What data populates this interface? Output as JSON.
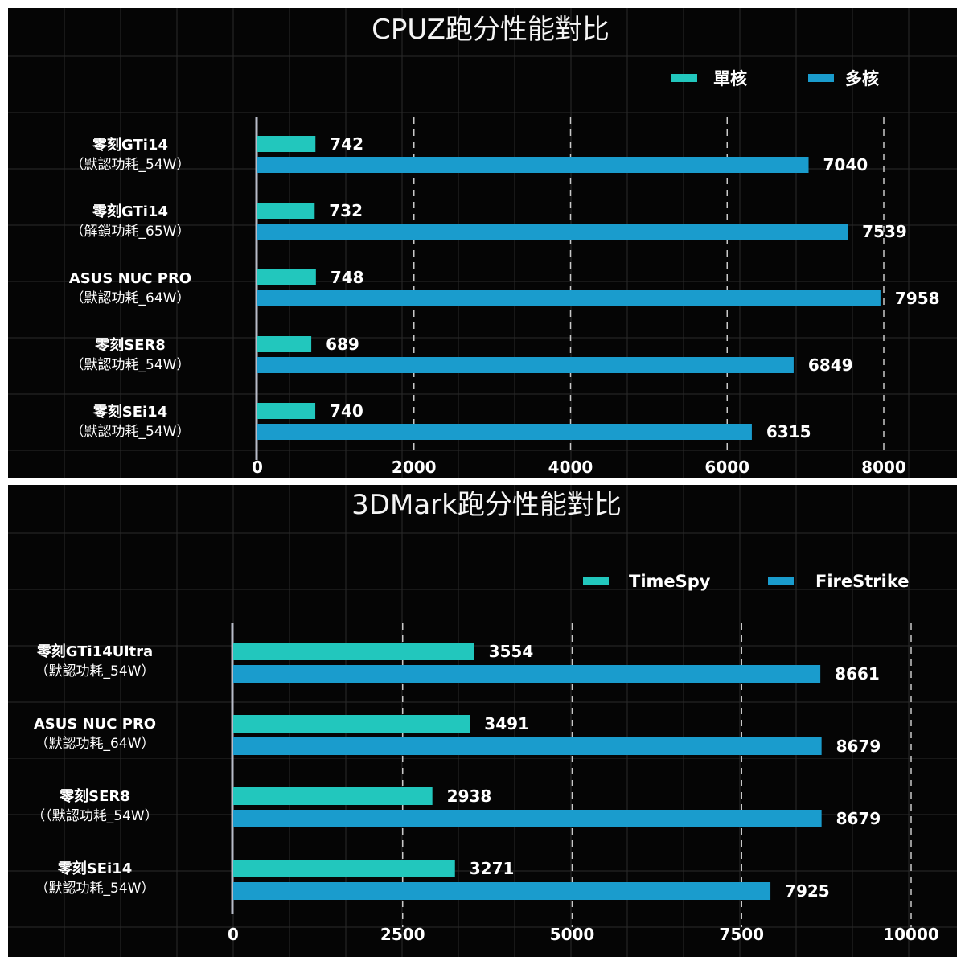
{
  "colors": {
    "single": "#22c7bd",
    "multi": "#1a9ccd",
    "background": "#050505",
    "grid": "#2a2a2a",
    "axis": "#b8bcc8"
  },
  "chart_data": [
    {
      "type": "bar",
      "orientation": "horizontal",
      "title": "CPUZ跑分性能對比",
      "categories": [
        {
          "name": "零刻GTi14",
          "sub": "（默認功耗_54W）"
        },
        {
          "name": "零刻GTi14",
          "sub": "（解鎖功耗_65W）"
        },
        {
          "name": "ASUS NUC PRO",
          "sub": "（默認功耗_64W）"
        },
        {
          "name": "零刻SER8",
          "sub": "（默認功耗_54W）"
        },
        {
          "name": "零刻SEi14",
          "sub": "（默認功耗_54W）"
        }
      ],
      "series": [
        {
          "name": "單核",
          "values": [
            742,
            732,
            748,
            689,
            740
          ]
        },
        {
          "name": "多核",
          "values": [
            7040,
            7539,
            7958,
            6849,
            6315
          ]
        }
      ],
      "xlim": [
        0,
        8000
      ],
      "xticks": [
        "0",
        "2000",
        "4000",
        "6000",
        "8000"
      ],
      "grid": "dashed vertical",
      "legend": "top-right"
    },
    {
      "type": "bar",
      "orientation": "horizontal",
      "title": "3DMark跑分性能對比",
      "categories": [
        {
          "name": "零刻GTi14Ultra",
          "sub": "（默認功耗_54W）"
        },
        {
          "name": "ASUS NUC PRO",
          "sub": "（默認功耗_64W）"
        },
        {
          "name": "零刻SER8",
          "sub": "（（默認功耗_54W）"
        },
        {
          "name": "零刻SEi14",
          "sub": "（默認功耗_54W）"
        }
      ],
      "series": [
        {
          "name": "TimeSpy",
          "values": [
            3554,
            3491,
            2938,
            3271
          ]
        },
        {
          "name": "FireStrike",
          "values": [
            8661,
            8679,
            8679,
            7925
          ]
        }
      ],
      "xlim": [
        0,
        10000
      ],
      "xticks": [
        "0",
        "2500",
        "5000",
        "7500",
        "10000"
      ],
      "grid": "dashed vertical",
      "legend": "top-right"
    }
  ]
}
